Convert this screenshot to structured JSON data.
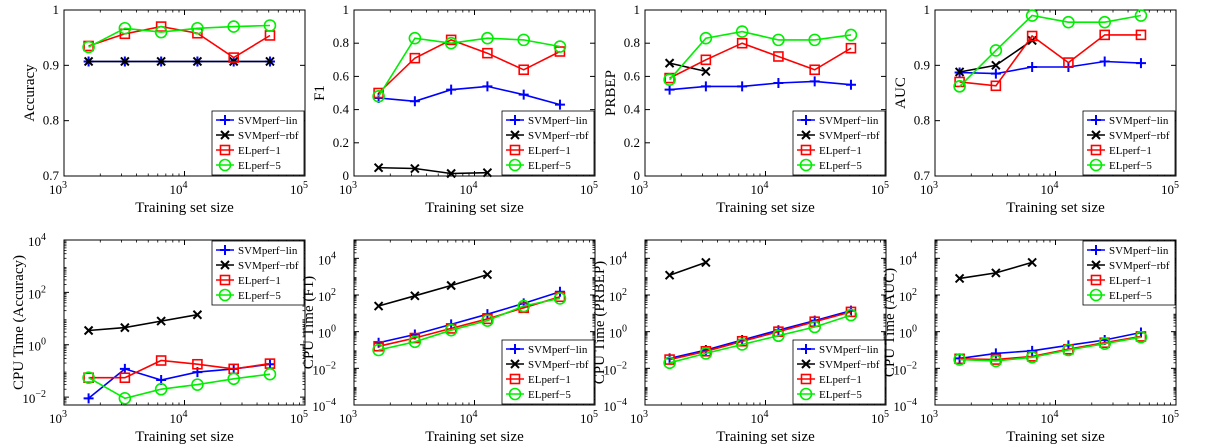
{
  "figure": {
    "series_styles": [
      {
        "name": "SVMperf−lin",
        "color": "#0000ff",
        "marker": "plus"
      },
      {
        "name": "SVMperf−rbf",
        "color": "#000000",
        "marker": "x"
      },
      {
        "name": "ELperf−1",
        "color": "#ff0000",
        "marker": "square"
      },
      {
        "name": "ELperf−5",
        "color": "#00ee00",
        "marker": "circle"
      }
    ]
  },
  "chart_data": [
    {
      "type": "line",
      "xscale": "log",
      "yscale": "linear",
      "xlabel": "Training set size",
      "ylabel": "Accuracy",
      "xlim": [
        1000,
        100000
      ],
      "ylim": [
        0.7,
        1.0
      ],
      "xticks": [
        {
          "value": 1000,
          "base": "10",
          "exp": "3"
        },
        {
          "value": 10000,
          "base": "10",
          "exp": "4"
        },
        {
          "value": 100000,
          "base": "10",
          "exp": "5"
        }
      ],
      "yticks": [
        {
          "value": 0.7,
          "label": "0.7"
        },
        {
          "value": 0.8,
          "label": "0.8"
        },
        {
          "value": 0.9,
          "label": "0.9"
        },
        {
          "value": 1.0,
          "label": "1"
        }
      ],
      "legend": "lower-right",
      "series": [
        {
          "name": "SVMperf−lin",
          "x": [
            1600,
            3200,
            6400,
            12800,
            25600,
            51200
          ],
          "y": [
            0.907,
            0.907,
            0.907,
            0.907,
            0.907,
            0.907
          ]
        },
        {
          "name": "SVMperf−rbf",
          "x": [
            1600,
            3200,
            6400,
            12800,
            25600,
            51200
          ],
          "y": [
            0.907,
            0.907,
            0.907,
            0.907,
            0.907,
            0.907
          ]
        },
        {
          "name": "ELperf−1",
          "x": [
            1600,
            3200,
            6400,
            12800,
            25600,
            51200
          ],
          "y": [
            0.935,
            0.957,
            0.97,
            0.958,
            0.914,
            0.954
          ]
        },
        {
          "name": "ELperf−5",
          "x": [
            1600,
            3200,
            6400,
            12800,
            25600,
            51200
          ],
          "y": [
            0.933,
            0.967,
            0.96,
            0.967,
            0.97,
            0.972
          ]
        }
      ]
    },
    {
      "type": "line",
      "xscale": "log",
      "yscale": "linear",
      "xlabel": "Training set size",
      "ylabel": "F1",
      "xlim": [
        1000,
        100000
      ],
      "ylim": [
        0,
        1.0
      ],
      "xticks": [
        {
          "value": 1000,
          "base": "10",
          "exp": "3"
        },
        {
          "value": 10000,
          "base": "10",
          "exp": "4"
        },
        {
          "value": 100000,
          "base": "10",
          "exp": "5"
        }
      ],
      "yticks": [
        {
          "value": 0,
          "label": "0"
        },
        {
          "value": 0.2,
          "label": "0.2"
        },
        {
          "value": 0.4,
          "label": "0.4"
        },
        {
          "value": 0.6,
          "label": "0.6"
        },
        {
          "value": 0.8,
          "label": "0.8"
        },
        {
          "value": 1.0,
          "label": "1"
        }
      ],
      "legend": "lower-right",
      "series": [
        {
          "name": "SVMperf−lin",
          "x": [
            1600,
            3200,
            6400,
            12800,
            25600,
            51200
          ],
          "y": [
            0.47,
            0.45,
            0.52,
            0.54,
            0.49,
            0.43
          ]
        },
        {
          "name": "SVMperf−rbf",
          "x": [
            1600,
            3200,
            6400,
            12800
          ],
          "y": [
            0.05,
            0.045,
            0.015,
            0.02
          ]
        },
        {
          "name": "ELperf−1",
          "x": [
            1600,
            3200,
            6400,
            12800,
            25600,
            51200
          ],
          "y": [
            0.5,
            0.71,
            0.82,
            0.74,
            0.64,
            0.75
          ]
        },
        {
          "name": "ELperf−5",
          "x": [
            1600,
            3200,
            6400,
            12800,
            25600,
            51200
          ],
          "y": [
            0.48,
            0.83,
            0.8,
            0.83,
            0.82,
            0.78
          ]
        }
      ]
    },
    {
      "type": "line",
      "xscale": "log",
      "yscale": "linear",
      "xlabel": "Training set size",
      "ylabel": "PRBEP",
      "xlim": [
        1000,
        100000
      ],
      "ylim": [
        0,
        1.0
      ],
      "xticks": [
        {
          "value": 1000,
          "base": "10",
          "exp": "3"
        },
        {
          "value": 10000,
          "base": "10",
          "exp": "4"
        },
        {
          "value": 100000,
          "base": "10",
          "exp": "5"
        }
      ],
      "yticks": [
        {
          "value": 0,
          "label": "0"
        },
        {
          "value": 0.2,
          "label": "0.2"
        },
        {
          "value": 0.4,
          "label": "0.4"
        },
        {
          "value": 0.6,
          "label": "0.6"
        },
        {
          "value": 0.8,
          "label": "0.8"
        },
        {
          "value": 1.0,
          "label": "1"
        }
      ],
      "legend": "lower-right",
      "series": [
        {
          "name": "SVMperf−lin",
          "x": [
            1600,
            3200,
            6400,
            12800,
            25600,
            51200
          ],
          "y": [
            0.52,
            0.54,
            0.54,
            0.56,
            0.57,
            0.55
          ]
        },
        {
          "name": "SVMperf−rbf",
          "x": [
            1600,
            3200
          ],
          "y": [
            0.68,
            0.63
          ]
        },
        {
          "name": "ELperf−1",
          "x": [
            1600,
            3200,
            6400,
            12800,
            25600,
            51200
          ],
          "y": [
            0.59,
            0.7,
            0.8,
            0.72,
            0.64,
            0.77
          ]
        },
        {
          "name": "ELperf−5",
          "x": [
            1600,
            3200,
            6400,
            12800,
            25600,
            51200
          ],
          "y": [
            0.58,
            0.83,
            0.87,
            0.82,
            0.82,
            0.85
          ]
        }
      ]
    },
    {
      "type": "line",
      "xscale": "log",
      "yscale": "linear",
      "xlabel": "Training set size",
      "ylabel": "AUC",
      "xlim": [
        1000,
        100000
      ],
      "ylim": [
        0.7,
        1.0
      ],
      "xticks": [
        {
          "value": 1000,
          "base": "10",
          "exp": "3"
        },
        {
          "value": 10000,
          "base": "10",
          "exp": "4"
        },
        {
          "value": 100000,
          "base": "10",
          "exp": "5"
        }
      ],
      "yticks": [
        {
          "value": 0.7,
          "label": "0.7"
        },
        {
          "value": 0.8,
          "label": "0.8"
        },
        {
          "value": 0.9,
          "label": "0.9"
        },
        {
          "value": 1.0,
          "label": "1"
        }
      ],
      "legend": "lower-right",
      "series": [
        {
          "name": "SVMperf−lin",
          "x": [
            1600,
            3200,
            6400,
            12800,
            25600,
            51200
          ],
          "y": [
            0.887,
            0.885,
            0.897,
            0.897,
            0.907,
            0.904
          ]
        },
        {
          "name": "SVMperf−rbf",
          "x": [
            1600,
            3200,
            6400
          ],
          "y": [
            0.888,
            0.9,
            0.945
          ]
        },
        {
          "name": "ELperf−1",
          "x": [
            1600,
            3200,
            6400,
            12800,
            25600,
            51200
          ],
          "y": [
            0.87,
            0.863,
            0.953,
            0.905,
            0.955,
            0.955
          ]
        },
        {
          "name": "ELperf−5",
          "x": [
            1600,
            3200,
            6400,
            12800,
            25600,
            51200
          ],
          "y": [
            0.862,
            0.927,
            0.99,
            0.978,
            0.978,
            0.99
          ]
        }
      ]
    },
    {
      "type": "line",
      "xscale": "log",
      "yscale": "log",
      "xlabel": "Training set size",
      "ylabel": "CPU Time (Accuracy)",
      "xlim": [
        1000,
        100000
      ],
      "ylim": [
        0.005,
        10000
      ],
      "xticks": [
        {
          "value": 1000,
          "base": "10",
          "exp": "3"
        },
        {
          "value": 10000,
          "base": "10",
          "exp": "4"
        },
        {
          "value": 100000,
          "base": "10",
          "exp": "5"
        }
      ],
      "yticks": [
        {
          "value": 0.01,
          "base": "10",
          "exp": "−2"
        },
        {
          "value": 1,
          "base": "10",
          "exp": "0"
        },
        {
          "value": 100,
          "base": "10",
          "exp": "2"
        },
        {
          "value": 10000,
          "base": "10",
          "exp": "4"
        }
      ],
      "legend": "upper-right",
      "series": [
        {
          "name": "SVMperf−lin",
          "x": [
            1600,
            3200,
            6400,
            12800,
            25600,
            51200
          ],
          "y": [
            0.009,
            0.12,
            0.045,
            0.09,
            0.12,
            0.18
          ]
        },
        {
          "name": "SVMperf−rbf",
          "x": [
            1600,
            3200,
            6400,
            12800
          ],
          "y": [
            3.5,
            4.5,
            8.0,
            14.0
          ]
        },
        {
          "name": "ELperf−1",
          "x": [
            1600,
            3200,
            6400,
            12800,
            25600,
            51200
          ],
          "y": [
            0.055,
            0.055,
            0.25,
            0.18,
            0.12,
            0.19
          ]
        },
        {
          "name": "ELperf−5",
          "x": [
            1600,
            3200,
            6400,
            12800,
            25600,
            51200
          ],
          "y": [
            0.055,
            0.009,
            0.02,
            0.03,
            0.05,
            0.075
          ]
        }
      ]
    },
    {
      "type": "line",
      "xscale": "log",
      "yscale": "log",
      "xlabel": "Training set size",
      "ylabel": "CPU Time (F1)",
      "xlim": [
        1000,
        100000
      ],
      "ylim": [
        0.0001,
        100000
      ],
      "xticks": [
        {
          "value": 1000,
          "base": "10",
          "exp": "3"
        },
        {
          "value": 10000,
          "base": "10",
          "exp": "4"
        },
        {
          "value": 100000,
          "base": "10",
          "exp": "5"
        }
      ],
      "yticks": [
        {
          "value": 0.0001,
          "base": "10",
          "exp": "−4"
        },
        {
          "value": 0.01,
          "base": "10",
          "exp": "−2"
        },
        {
          "value": 1,
          "base": "10",
          "exp": "0"
        },
        {
          "value": 100,
          "base": "10",
          "exp": "2"
        },
        {
          "value": 10000,
          "base": "10",
          "exp": "4"
        }
      ],
      "legend": "lower-right",
      "series": [
        {
          "name": "SVMperf−lin",
          "x": [
            1600,
            3200,
            6400,
            12800,
            25600,
            51200
          ],
          "y": [
            0.25,
            0.7,
            2.5,
            9.0,
            35.0,
            150.0
          ]
        },
        {
          "name": "SVMperf−rbf",
          "x": [
            1600,
            3200,
            6400,
            12800
          ],
          "y": [
            25.0,
            90.0,
            330.0,
            1300.0
          ]
        },
        {
          "name": "ELperf−1",
          "x": [
            1600,
            3200,
            6400,
            12800,
            25600,
            51200
          ],
          "y": [
            0.16,
            0.45,
            1.5,
            5.0,
            20.0,
            80.0
          ]
        },
        {
          "name": "ELperf−5",
          "x": [
            1600,
            3200,
            6400,
            12800,
            25600,
            51200
          ],
          "y": [
            0.1,
            0.28,
            1.2,
            4.0,
            25.0,
            65.0
          ]
        }
      ]
    },
    {
      "type": "line",
      "xscale": "log",
      "yscale": "log",
      "xlabel": "Training set size",
      "ylabel": "CPU Time (PRBEP)",
      "xlim": [
        1000,
        100000
      ],
      "ylim": [
        0.0001,
        100000
      ],
      "xticks": [
        {
          "value": 1000,
          "base": "10",
          "exp": "3"
        },
        {
          "value": 10000,
          "base": "10",
          "exp": "4"
        },
        {
          "value": 100000,
          "base": "10",
          "exp": "5"
        }
      ],
      "yticks": [
        {
          "value": 0.0001,
          "base": "10",
          "exp": "−4"
        },
        {
          "value": 0.01,
          "base": "10",
          "exp": "−2"
        },
        {
          "value": 1,
          "base": "10",
          "exp": "0"
        },
        {
          "value": 100,
          "base": "10",
          "exp": "2"
        },
        {
          "value": 10000,
          "base": "10",
          "exp": "4"
        }
      ],
      "legend": "lower-right",
      "series": [
        {
          "name": "SVMperf−lin",
          "x": [
            1600,
            3200,
            6400,
            12800,
            25600,
            51200
          ],
          "y": [
            0.035,
            0.1,
            0.35,
            1.2,
            4.0,
            14.0
          ]
        },
        {
          "name": "SVMperf−rbf",
          "x": [
            1600,
            3200
          ],
          "y": [
            1200.0,
            6000.0
          ]
        },
        {
          "name": "ELperf−1",
          "x": [
            1600,
            3200,
            6400,
            12800,
            25600,
            51200
          ],
          "y": [
            0.03,
            0.085,
            0.3,
            1.0,
            3.5,
            12.0
          ]
        },
        {
          "name": "ELperf−5",
          "x": [
            1600,
            3200,
            6400,
            12800,
            25600,
            51200
          ],
          "y": [
            0.02,
            0.065,
            0.2,
            0.6,
            1.8,
            8.0
          ]
        }
      ]
    },
    {
      "type": "line",
      "xscale": "log",
      "yscale": "log",
      "xlabel": "Training set size",
      "ylabel": "CPU Time (AUC)",
      "xlim": [
        1000,
        100000
      ],
      "ylim": [
        0.0001,
        100000
      ],
      "xticks": [
        {
          "value": 1000,
          "base": "10",
          "exp": "3"
        },
        {
          "value": 10000,
          "base": "10",
          "exp": "4"
        },
        {
          "value": 100000,
          "base": "10",
          "exp": "5"
        }
      ],
      "yticks": [
        {
          "value": 0.0001,
          "base": "10",
          "exp": "−4"
        },
        {
          "value": 0.01,
          "base": "10",
          "exp": "−2"
        },
        {
          "value": 1,
          "base": "10",
          "exp": "0"
        },
        {
          "value": 100,
          "base": "10",
          "exp": "2"
        },
        {
          "value": 10000,
          "base": "10",
          "exp": "4"
        }
      ],
      "legend": "upper-right",
      "series": [
        {
          "name": "SVMperf−lin",
          "x": [
            1600,
            3200,
            6400,
            12800,
            25600,
            51200
          ],
          "y": [
            0.035,
            0.065,
            0.09,
            0.18,
            0.35,
            0.9
          ]
        },
        {
          "name": "SVMperf−rbf",
          "x": [
            1600,
            3200,
            6400
          ],
          "y": [
            800.0,
            1600.0,
            6000.0
          ]
        },
        {
          "name": "ELperf−1",
          "x": [
            1600,
            3200,
            6400,
            12800,
            25600,
            51200
          ],
          "y": [
            0.033,
            0.03,
            0.045,
            0.11,
            0.25,
            0.55
          ]
        },
        {
          "name": "ELperf−5",
          "x": [
            1600,
            3200,
            6400,
            12800,
            25600,
            51200
          ],
          "y": [
            0.03,
            0.025,
            0.04,
            0.1,
            0.22,
            0.5
          ]
        }
      ]
    }
  ]
}
